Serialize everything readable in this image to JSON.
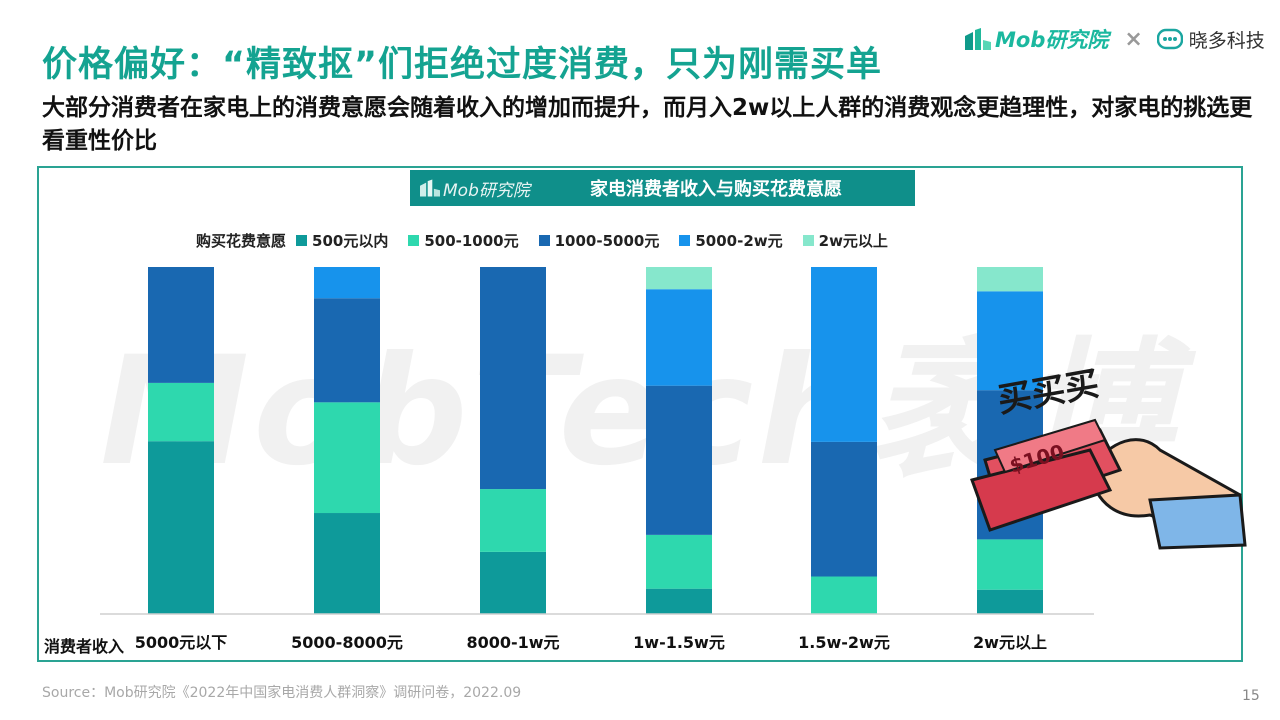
{
  "header": {
    "title": "价格偏好：“精致抠”们拒绝过度消费，只为刚需买单",
    "subtitle": "大部分消费者在家电上的消费意愿会随着收入的增加而提升，而月入2w以上人群的消费观念更趋理性，对家电的挑选更看重性价比"
  },
  "brand": {
    "mob_logo_text": "Mob研究院",
    "partner_symbol": "×",
    "partner_name": "晓多科技"
  },
  "chart_header": {
    "logo_text": "Mob研究院",
    "title": "家电消费者收入与购买花费意愿"
  },
  "watermark": "MobTech袤博",
  "illustration": {
    "caption": "买买买",
    "bill_text": "$100"
  },
  "footer": {
    "source": "Source：Mob研究院《2022年中国家电消费人群洞察》调研问卷，2022.09",
    "page_number": "15"
  },
  "chart_data": {
    "type": "bar",
    "stacked": true,
    "title": "家电消费者收入与购买花费意愿",
    "legend_title": "购买花费意愿",
    "xlabel": "消费者收入",
    "ylabel": "",
    "ylim": [
      0,
      100
    ],
    "grid": false,
    "legend_position": "top",
    "categories": [
      "5000元以下",
      "5000-8000元",
      "8000-1w元",
      "1w-1.5w元",
      "1.5w-2w元",
      "2w元以上"
    ],
    "series": [
      {
        "name": "500元以内",
        "color": "#0e9a9a",
        "values": [
          49.8,
          29.1,
          17.9,
          7.3,
          0,
          7.0
        ]
      },
      {
        "name": "500-1000元",
        "color": "#2ed8ae",
        "values": [
          16.8,
          31.9,
          18.1,
          15.5,
          10.8,
          14.5
        ]
      },
      {
        "name": "1000-5000元",
        "color": "#1968b1",
        "values": [
          33.4,
          30.0,
          64.0,
          43.0,
          38.8,
          43.0
        ]
      },
      {
        "name": "5000-2w元",
        "color": "#1793ec",
        "values": [
          0,
          9.0,
          0,
          27.8,
          50.4,
          28.5
        ]
      },
      {
        "name": "2w元以上",
        "color": "#86e7cc",
        "values": [
          0,
          0,
          0,
          6.4,
          0,
          7.0
        ]
      }
    ]
  }
}
